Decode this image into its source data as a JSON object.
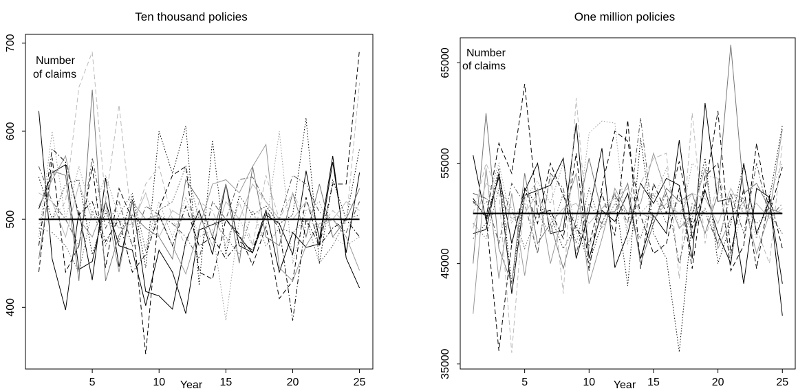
{
  "chart_data": [
    {
      "type": "line",
      "title": "Ten thousand policies",
      "xlabel": "Year",
      "ylabel": "",
      "annotation": [
        "Number",
        "of claims"
      ],
      "xlim": [
        0,
        26
      ],
      "ylim": [
        330,
        710
      ],
      "xticks": [
        5,
        10,
        15,
        20,
        25
      ],
      "yticks": [
        400,
        500,
        600,
        700
      ],
      "reference_line": 500,
      "x": [
        1,
        2,
        3,
        4,
        5,
        6,
        7,
        8,
        9,
        10,
        11,
        12,
        13,
        14,
        15,
        16,
        17,
        18,
        19,
        20,
        21,
        22,
        23,
        24,
        25
      ],
      "series": [
        {
          "style": "solid",
          "color": "#000000",
          "values": [
            623,
            455,
            397,
            509,
            431,
            547,
            446,
            522,
            418,
            413,
            398,
            475,
            510,
            460,
            540,
            470,
            462,
            505,
            495,
            460,
            555,
            477,
            572,
            456,
            422
          ]
        },
        {
          "style": "solid",
          "color": "#000000",
          "values": [
            512,
            553,
            562,
            443,
            452,
            520,
            470,
            465,
            402,
            465,
            440,
            393,
            488,
            494,
            500,
            480,
            462,
            510,
            440,
            485,
            468,
            472,
            565,
            462,
            553
          ]
        },
        {
          "style": "dashed",
          "color": "#000000",
          "values": [
            440,
            570,
            440,
            470,
            560,
            445,
            535,
            500,
            347,
            512,
            550,
            560,
            440,
            432,
            500,
            483,
            448,
            492,
            410,
            430,
            525,
            470,
            540,
            540,
            693
          ]
        },
        {
          "style": "dotted",
          "color": "#000000",
          "values": [
            548,
            500,
            540,
            545,
            460,
            508,
            475,
            527,
            445,
            600,
            552,
            606,
            425,
            590,
            460,
            527,
            505,
            515,
            495,
            505,
            615,
            450,
            545,
            500,
            580
          ]
        },
        {
          "style": "dashdot",
          "color": "#555555",
          "values": [
            560,
            520,
            500,
            470,
            570,
            490,
            520,
            470,
            515,
            505,
            495,
            480,
            455,
            520,
            500,
            545,
            548,
            520,
            500,
            550,
            540,
            508,
            500,
            485,
            520
          ]
        },
        {
          "style": "solid",
          "color": "#777777",
          "values": [
            455,
            555,
            550,
            430,
            647,
            430,
            482,
            505,
            490,
            480,
            455,
            545,
            522,
            480,
            540,
            450,
            560,
            480,
            470,
            530,
            480,
            540,
            480,
            500,
            535
          ]
        },
        {
          "style": "solid",
          "color": "#999999",
          "values": [
            515,
            545,
            572,
            500,
            480,
            520,
            440,
            520,
            500,
            505,
            470,
            438,
            490,
            540,
            545,
            530,
            560,
            585,
            445,
            430,
            470,
            495,
            500,
            480,
            442
          ]
        },
        {
          "style": "dotted",
          "color": "#999999",
          "values": [
            480,
            600,
            500,
            560,
            505,
            550,
            502,
            470,
            470,
            520,
            480,
            525,
            480,
            488,
            385,
            500,
            470,
            490,
            600,
            450,
            510,
            520,
            480,
            470,
            480
          ]
        },
        {
          "style": "dashed",
          "color": "#bbbbbb",
          "values": [
            495,
            500,
            520,
            650,
            690,
            520,
            630,
            490,
            540,
            560,
            500,
            470,
            520,
            510,
            470,
            520,
            470,
            550,
            500,
            530,
            500,
            490,
            510,
            495,
            655
          ]
        },
        {
          "style": "solid",
          "color": "#bbbbbb",
          "values": [
            530,
            520,
            480,
            540,
            500,
            510,
            490,
            495,
            530,
            480,
            510,
            500,
            505,
            470,
            520,
            500,
            540,
            520,
            500,
            500,
            520,
            490,
            500,
            520,
            510
          ]
        },
        {
          "style": "dashdot",
          "color": "#000000",
          "values": [
            470,
            580,
            565,
            505,
            520,
            475,
            500,
            440,
            460,
            505,
            470,
            515,
            470,
            480,
            455,
            475,
            465,
            510,
            490,
            385,
            500,
            470,
            490,
            500,
            480
          ]
        },
        {
          "style": "dotted",
          "color": "#555555",
          "values": [
            490,
            485,
            470,
            440,
            510,
            470,
            505,
            530,
            465,
            510,
            520,
            560,
            500,
            500,
            480,
            460,
            510,
            470,
            490,
            485,
            500,
            450,
            470,
            500,
            505
          ]
        }
      ]
    },
    {
      "type": "line",
      "title": "One million policies",
      "xlabel": "Year",
      "ylabel": "",
      "annotation": [
        "Number",
        "of claims"
      ],
      "xlim": [
        0,
        26
      ],
      "ylim": [
        34500,
        67500
      ],
      "xticks": [
        5,
        10,
        15,
        20,
        25
      ],
      "yticks": [
        35000,
        45000,
        55000,
        65000
      ],
      "reference_line": 50000,
      "x": [
        1,
        2,
        3,
        4,
        5,
        6,
        7,
        8,
        9,
        10,
        11,
        12,
        13,
        14,
        15,
        16,
        17,
        18,
        19,
        20,
        21,
        22,
        23,
        24,
        25
      ],
      "series": [
        {
          "style": "solid",
          "color": "#000000",
          "values": [
            55800,
            49300,
            53600,
            42000,
            51800,
            52300,
            52800,
            55500,
            45500,
            50200,
            56500,
            44600,
            48000,
            53000,
            51000,
            53500,
            52800,
            45500,
            61000,
            51200,
            51500,
            43000,
            52500,
            51600,
            39800
          ]
        },
        {
          "style": "solid",
          "color": "#000000",
          "values": [
            48000,
            48400,
            54000,
            47000,
            52200,
            55000,
            48000,
            48300,
            59000,
            45500,
            50300,
            49200,
            52000,
            45500,
            49800,
            48000,
            57300,
            47500,
            52300,
            48000,
            45000,
            55000,
            48000,
            51300,
            43000
          ]
        },
        {
          "style": "dashed",
          "color": "#000000",
          "values": [
            51500,
            49500,
            57000,
            54000,
            62900,
            50000,
            50300,
            47500,
            56000,
            44300,
            52700,
            58200,
            57200,
            49800,
            46000,
            47000,
            52500,
            44500,
            53700,
            55000,
            44300,
            46800,
            57000,
            50000,
            54600
          ]
        },
        {
          "style": "dashed",
          "color": "#000000",
          "values": [
            51200,
            49800,
            36300,
            47000,
            52500,
            49000,
            55000,
            51800,
            48500,
            46800,
            52000,
            47800,
            59300,
            44500,
            53000,
            50000,
            55200,
            48600,
            52500,
            60200,
            46000,
            52500,
            44500,
            51800,
            46500
          ]
        },
        {
          "style": "dotted",
          "color": "#000000",
          "values": [
            47500,
            49000,
            54500,
            43000,
            52500,
            50800,
            49800,
            46500,
            48800,
            45000,
            49000,
            52000,
            42800,
            57500,
            48000,
            45500,
            36200,
            49500,
            55500,
            45000,
            49000,
            55000,
            48000,
            51500,
            58800
          ]
        },
        {
          "style": "solid",
          "color": "#777777",
          "values": [
            45000,
            60000,
            46500,
            43000,
            54000,
            47000,
            49000,
            44500,
            49500,
            55500,
            50000,
            50200,
            53000,
            45000,
            49000,
            52500,
            51200,
            52000,
            48000,
            52000,
            66800,
            52000,
            53000,
            50500,
            50000
          ]
        },
        {
          "style": "solid",
          "color": "#999999",
          "values": [
            40000,
            54500,
            43500,
            52000,
            43800,
            52500,
            45000,
            50000,
            54000,
            43000,
            47500,
            52500,
            50000,
            51000,
            56000,
            52000,
            48500,
            50000,
            54500,
            46500,
            49500,
            51200,
            46000,
            50000,
            58400
          ]
        },
        {
          "style": "dotted",
          "color": "#999999",
          "values": [
            51000,
            51000,
            55000,
            49000,
            51500,
            53200,
            51000,
            55000,
            48000,
            58000,
            59200,
            59000,
            47000,
            50000,
            51500,
            54500,
            48500,
            55000,
            53800,
            53500,
            45500,
            51000,
            47500,
            52000,
            55000
          ]
        },
        {
          "style": "dashed",
          "color": "#bbbbbb",
          "values": [
            50000,
            55000,
            52000,
            36100,
            52000,
            46000,
            54000,
            42000,
            61500,
            46500,
            50500,
            52000,
            48500,
            53000,
            55500,
            56000,
            43500,
            60000,
            47000,
            53500,
            51000,
            51500,
            48500,
            45000,
            57000
          ]
        },
        {
          "style": "dashdot",
          "color": "#555555",
          "values": [
            52000,
            51500,
            47000,
            53000,
            51000,
            46000,
            54000,
            52500,
            46000,
            51000,
            49000,
            52000,
            49000,
            59500,
            49000,
            52000,
            45000,
            51000,
            50000,
            47000,
            52000,
            48000,
            55000,
            49500,
            51000
          ]
        },
        {
          "style": "solid",
          "color": "#bbbbbb",
          "values": [
            48500,
            53000,
            52000,
            49500,
            50000,
            52000,
            49000,
            50500,
            51000,
            49000,
            50500,
            51500,
            52500,
            50000,
            49500,
            51000,
            50000,
            52000,
            51500,
            49000,
            52500,
            50000,
            51000,
            49500,
            50500
          ]
        },
        {
          "style": "dotted",
          "color": "#555555",
          "values": [
            49000,
            47500,
            52500,
            50500,
            46500,
            50000,
            48000,
            52000,
            47000,
            52500,
            48500,
            51000,
            50000,
            47500,
            52000,
            49000,
            51500,
            48000,
            50500,
            47000,
            52000,
            51500,
            49000,
            50000,
            48000
          ]
        }
      ]
    }
  ]
}
